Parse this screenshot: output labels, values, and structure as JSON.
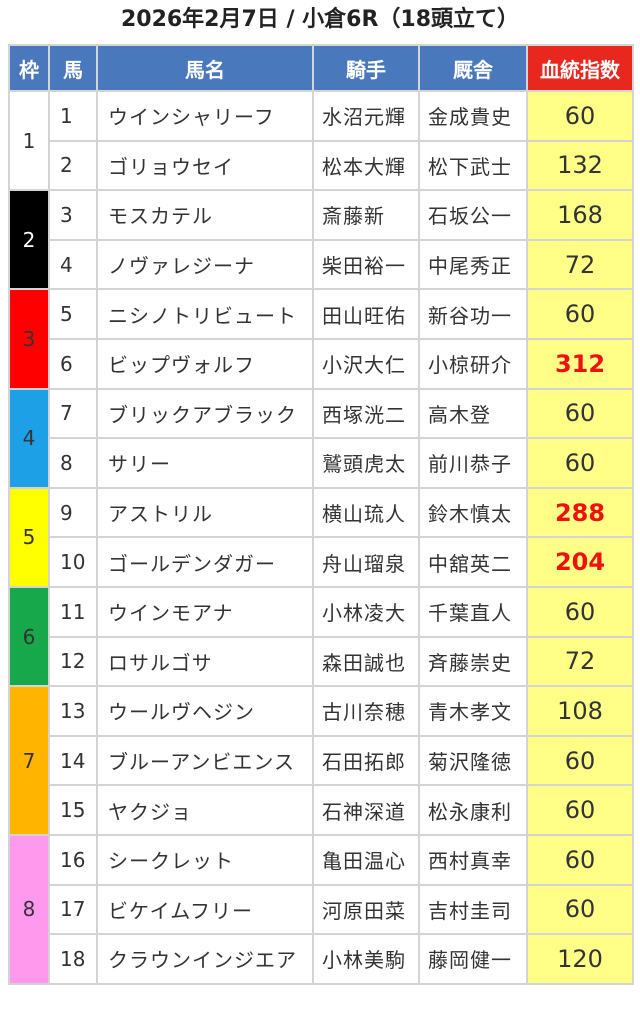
{
  "title": "2026年2月7日 / 小倉6R（18頭立て）",
  "headers": {
    "frame": "枠",
    "number": "馬",
    "name": "馬名",
    "jockey": "騎手",
    "trainer": "厩舎",
    "index": "血統指数"
  },
  "colors": {
    "header": "#4a78bd",
    "index_header": "#e8281e",
    "score_bg": "#ffff88",
    "highlight": "#f01010"
  },
  "frames": [
    {
      "frame": "1",
      "color": "#ffffff",
      "text_color": "#333333"
    },
    {
      "frame": "2",
      "color": "#000000",
      "text_color": "#ffffff"
    },
    {
      "frame": "3",
      "color": "#ff0000",
      "text_color": "#333333"
    },
    {
      "frame": "4",
      "color": "#1ea0e6",
      "text_color": "#333333"
    },
    {
      "frame": "5",
      "color": "#ffff00",
      "text_color": "#333333"
    },
    {
      "frame": "6",
      "color": "#16a84a",
      "text_color": "#333333"
    },
    {
      "frame": "7",
      "color": "#ffb400",
      "text_color": "#333333"
    },
    {
      "frame": "8",
      "color": "#ff99ee",
      "text_color": "#333333"
    }
  ],
  "rows": [
    {
      "frame": "1",
      "number": "1",
      "name": "ウインシャリーフ",
      "jockey": "水沼元輝",
      "trainer": "金成貴史",
      "index": "60",
      "highlight": false
    },
    {
      "frame": "1",
      "number": "2",
      "name": "ゴリョウセイ",
      "jockey": "松本大輝",
      "trainer": "松下武士",
      "index": "132",
      "highlight": false
    },
    {
      "frame": "2",
      "number": "3",
      "name": "モスカテル",
      "jockey": "斎藤新",
      "trainer": "石坂公一",
      "index": "168",
      "highlight": false
    },
    {
      "frame": "2",
      "number": "4",
      "name": "ノヴァレジーナ",
      "jockey": "柴田裕一",
      "trainer": "中尾秀正",
      "index": "72",
      "highlight": false
    },
    {
      "frame": "3",
      "number": "5",
      "name": "ニシノトリビュート",
      "jockey": "田山旺佑",
      "trainer": "新谷功一",
      "index": "60",
      "highlight": false
    },
    {
      "frame": "3",
      "number": "6",
      "name": "ビップヴォルフ",
      "jockey": "小沢大仁",
      "trainer": "小椋研介",
      "index": "312",
      "highlight": true
    },
    {
      "frame": "4",
      "number": "7",
      "name": "ブリックアブラック",
      "jockey": "西塚洸二",
      "trainer": "高木登",
      "index": "60",
      "highlight": false
    },
    {
      "frame": "4",
      "number": "8",
      "name": "サリー",
      "jockey": "鷲頭虎太",
      "trainer": "前川恭子",
      "index": "60",
      "highlight": false
    },
    {
      "frame": "5",
      "number": "9",
      "name": "アストリル",
      "jockey": "横山琉人",
      "trainer": "鈴木慎太",
      "index": "288",
      "highlight": true
    },
    {
      "frame": "5",
      "number": "10",
      "name": "ゴールデンダガー",
      "jockey": "舟山瑠泉",
      "trainer": "中舘英二",
      "index": "204",
      "highlight": true
    },
    {
      "frame": "6",
      "number": "11",
      "name": "ウインモアナ",
      "jockey": "小林凌大",
      "trainer": "千葉直人",
      "index": "60",
      "highlight": false
    },
    {
      "frame": "6",
      "number": "12",
      "name": "ロサルゴサ",
      "jockey": "森田誠也",
      "trainer": "斉藤崇史",
      "index": "72",
      "highlight": false
    },
    {
      "frame": "7",
      "number": "13",
      "name": "ウールヴヘジン",
      "jockey": "古川奈穂",
      "trainer": "青木孝文",
      "index": "108",
      "highlight": false
    },
    {
      "frame": "7",
      "number": "14",
      "name": "ブルーアンビエンス",
      "jockey": "石田拓郎",
      "trainer": "菊沢隆徳",
      "index": "60",
      "highlight": false
    },
    {
      "frame": "7",
      "number": "15",
      "name": "ヤクジョ",
      "jockey": "石神深道",
      "trainer": "松永康利",
      "index": "60",
      "highlight": false
    },
    {
      "frame": "8",
      "number": "16",
      "name": "シークレット",
      "jockey": "亀田温心",
      "trainer": "西村真幸",
      "index": "60",
      "highlight": false
    },
    {
      "frame": "8",
      "number": "17",
      "name": "ビケイムフリー",
      "jockey": "河原田菜",
      "trainer": "吉村圭司",
      "index": "60",
      "highlight": false
    },
    {
      "frame": "8",
      "number": "18",
      "name": "クラウンインジエア",
      "jockey": "小林美駒",
      "trainer": "藤岡健一",
      "index": "120",
      "highlight": false
    }
  ]
}
